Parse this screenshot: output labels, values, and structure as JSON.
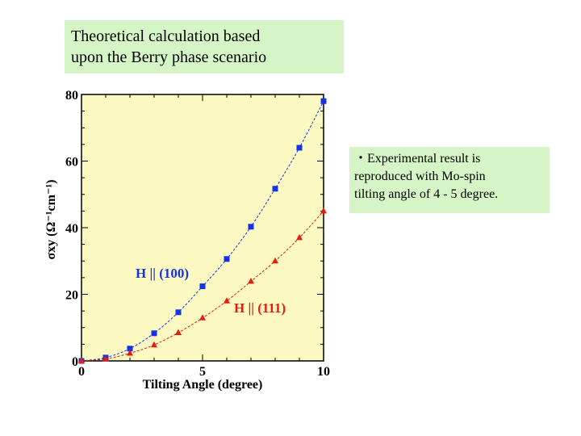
{
  "title": {
    "line1": "Theoretical calculation based",
    "line2": "upon the Berry phase scenario"
  },
  "note": {
    "line1": "・Experimental result is",
    "line2": "reproduced with Mo-spin",
    "line3": "tilting angle of 4 - 5 degree."
  },
  "colors": {
    "plot_background": "#fdf9c3",
    "box_background": "#d6f5c6",
    "series_100": "#1533e6",
    "series_111": "#e61a0f"
  },
  "chart_data": {
    "type": "line",
    "xlabel": "Tilting Angle (degree)",
    "ylabel": "σxy (Ω⁻¹cm⁻¹)",
    "xlim": [
      0,
      10
    ],
    "ylim": [
      0,
      80
    ],
    "xticks": [
      0,
      5,
      10
    ],
    "yticks": [
      0,
      20,
      40,
      60,
      80
    ],
    "grid": false,
    "series": [
      {
        "name": "H || (100)",
        "marker": "square",
        "color": "#1533e6",
        "x": [
          0,
          1,
          2,
          3,
          4,
          5,
          6,
          7,
          8,
          9,
          10
        ],
        "y": [
          0,
          1.0,
          3.7,
          8.3,
          14.6,
          22.4,
          30.6,
          40.3,
          51.7,
          64.0,
          78.0
        ]
      },
      {
        "name": "H || (111)",
        "marker": "triangle",
        "color": "#e61a0f",
        "x": [
          0,
          1,
          2,
          3,
          4,
          5,
          6,
          7,
          8,
          9,
          10
        ],
        "y": [
          0,
          0.6,
          2.3,
          4.8,
          8.5,
          12.9,
          18.0,
          23.9,
          30.0,
          37.0,
          45.0
        ]
      }
    ]
  }
}
